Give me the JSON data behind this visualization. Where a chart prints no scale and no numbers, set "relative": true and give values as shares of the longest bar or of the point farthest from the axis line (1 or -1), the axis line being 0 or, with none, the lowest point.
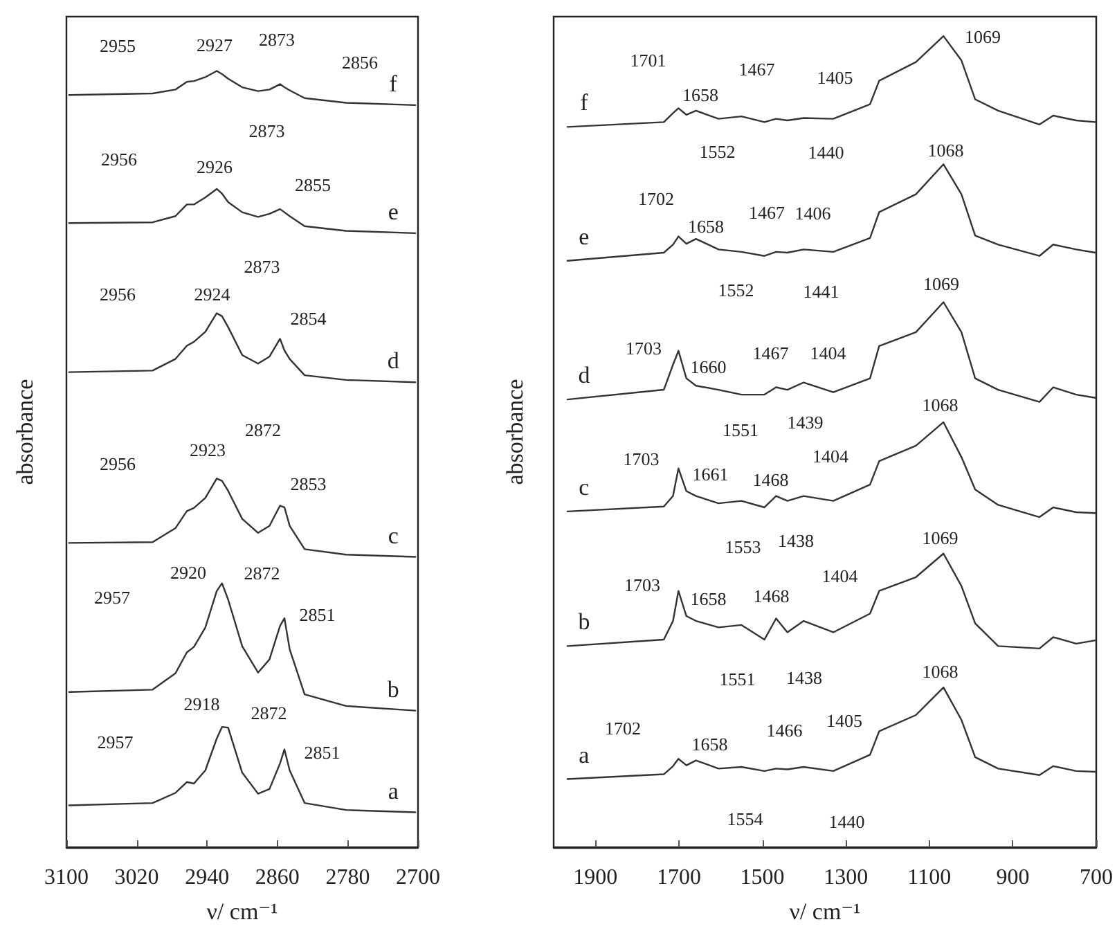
{
  "chart_data": [
    {
      "type": "line",
      "relative": true,
      "tick_labels": "x",
      "xlabel": "ν/ cm⁻¹",
      "ylabel": "absorbance",
      "xlim": [
        3100,
        2700
      ],
      "xticks": [
        3100,
        3020,
        2940,
        2860,
        2780,
        2700
      ],
      "x": [
        3097,
        3002,
        2976,
        2963,
        2955,
        2942,
        2929,
        2923,
        2916,
        2900,
        2882,
        2869,
        2857,
        2852,
        2846,
        2829,
        2782,
        2703
      ],
      "series": [
        {
          "name": "f",
          "color": "#333333",
          "values": [
            0.969,
            0.971,
            0.976,
            0.986,
            0.987,
            0.992,
            1.0,
            0.996,
            0.99,
            0.979,
            0.974,
            0.976,
            0.983,
            0.979,
            0.975,
            0.965,
            0.959,
            0.956
          ]
        },
        {
          "name": "e",
          "color": "#333333",
          "values": [
            0.804,
            0.805,
            0.813,
            0.828,
            0.828,
            0.837,
            0.848,
            0.842,
            0.831,
            0.818,
            0.812,
            0.816,
            0.822,
            0.818,
            0.813,
            0.8,
            0.794,
            0.791
          ]
        },
        {
          "name": "d",
          "color": "#333333",
          "values": [
            0.612,
            0.614,
            0.629,
            0.646,
            0.651,
            0.664,
            0.688,
            0.684,
            0.67,
            0.634,
            0.623,
            0.632,
            0.655,
            0.64,
            0.629,
            0.608,
            0.602,
            0.599
          ]
        },
        {
          "name": "c",
          "color": "#333333",
          "values": [
            0.392,
            0.393,
            0.411,
            0.433,
            0.437,
            0.45,
            0.475,
            0.472,
            0.459,
            0.423,
            0.405,
            0.414,
            0.44,
            0.438,
            0.414,
            0.384,
            0.377,
            0.374
          ]
        },
        {
          "name": "b",
          "color": "#333333",
          "values": [
            0.2,
            0.203,
            0.224,
            0.251,
            0.258,
            0.283,
            0.33,
            0.34,
            0.319,
            0.259,
            0.225,
            0.242,
            0.285,
            0.295,
            0.255,
            0.197,
            0.182,
            0.176
          ]
        },
        {
          "name": "a",
          "color": "#333333",
          "values": [
            0.054,
            0.057,
            0.07,
            0.084,
            0.082,
            0.099,
            0.14,
            0.155,
            0.154,
            0.096,
            0.069,
            0.075,
            0.108,
            0.126,
            0.099,
            0.057,
            0.048,
            0.045
          ]
        }
      ],
      "annotations": [
        "2955",
        "2927",
        "2873",
        "2856",
        "2956",
        "2926",
        "2873",
        "2855",
        "2956",
        "2924",
        "2873",
        "2854",
        "2956",
        "2923",
        "2872",
        "2853",
        "2957",
        "2920",
        "2872",
        "2851",
        "2957",
        "2918",
        "2872",
        "2851"
      ]
    },
    {
      "type": "line",
      "relative": true,
      "tick_labels": "x",
      "xlabel": "ν/ cm⁻¹",
      "ylabel": "absorbance",
      "xlim": [
        2000,
        700
      ],
      "xticks": [
        1900,
        1700,
        1500,
        1300,
        1100,
        900,
        700
      ],
      "x": [
        1967,
        1736,
        1714,
        1701,
        1682,
        1659,
        1605,
        1550,
        1495,
        1467,
        1440,
        1401,
        1330,
        1242,
        1220,
        1132,
        1066,
        1023,
        990,
        935,
        836,
        803,
        748,
        702
      ],
      "series": [
        {
          "name": "f",
          "color": "#333333",
          "values": [
            0.888,
            0.894,
            0.905,
            0.911,
            0.903,
            0.908,
            0.898,
            0.901,
            0.894,
            0.898,
            0.896,
            0.899,
            0.898,
            0.916,
            0.945,
            0.968,
            1.0,
            0.97,
            0.922,
            0.908,
            0.891,
            0.902,
            0.896,
            0.894
          ]
        },
        {
          "name": "e",
          "color": "#333333",
          "values": [
            0.723,
            0.733,
            0.743,
            0.753,
            0.744,
            0.75,
            0.737,
            0.734,
            0.729,
            0.734,
            0.733,
            0.737,
            0.734,
            0.751,
            0.783,
            0.805,
            0.842,
            0.805,
            0.754,
            0.743,
            0.729,
            0.743,
            0.737,
            0.733
          ]
        },
        {
          "name": "d",
          "color": "#333333",
          "values": [
            0.552,
            0.564,
            0.595,
            0.612,
            0.578,
            0.569,
            0.564,
            0.558,
            0.558,
            0.567,
            0.564,
            0.573,
            0.561,
            0.578,
            0.618,
            0.635,
            0.672,
            0.635,
            0.578,
            0.564,
            0.549,
            0.567,
            0.558,
            0.554
          ]
        },
        {
          "name": "c",
          "color": "#333333",
          "values": [
            0.414,
            0.42,
            0.433,
            0.467,
            0.439,
            0.433,
            0.424,
            0.427,
            0.419,
            0.433,
            0.427,
            0.433,
            0.427,
            0.447,
            0.476,
            0.495,
            0.524,
            0.481,
            0.441,
            0.422,
            0.407,
            0.419,
            0.413,
            0.412
          ]
        },
        {
          "name": "b",
          "color": "#333333",
          "values": [
            0.248,
            0.256,
            0.279,
            0.316,
            0.285,
            0.279,
            0.271,
            0.274,
            0.256,
            0.282,
            0.265,
            0.279,
            0.265,
            0.288,
            0.316,
            0.333,
            0.362,
            0.322,
            0.276,
            0.248,
            0.245,
            0.259,
            0.251,
            0.255
          ]
        },
        {
          "name": "a",
          "color": "#333333",
          "values": [
            0.084,
            0.09,
            0.1,
            0.109,
            0.101,
            0.107,
            0.097,
            0.099,
            0.094,
            0.097,
            0.096,
            0.099,
            0.094,
            0.114,
            0.143,
            0.163,
            0.197,
            0.157,
            0.111,
            0.097,
            0.089,
            0.1,
            0.094,
            0.093
          ]
        }
      ],
      "annotations": [
        "1701",
        "1658",
        "1467",
        "1405",
        "1552",
        "1440",
        "1069",
        "1702",
        "1658",
        "1467",
        "1406",
        "1552",
        "1441",
        "1068",
        "1703",
        "1660",
        "1467",
        "1404",
        "1551",
        "1439",
        "1069",
        "1068",
        "1703",
        "1661",
        "1468",
        "1404",
        "1553",
        "1438",
        "1069",
        "1703",
        "1658",
        "1468",
        "1404",
        "1551",
        "1438",
        "1068",
        "1702",
        "1658",
        "1466",
        "1405",
        "1554",
        "1440"
      ]
    }
  ]
}
